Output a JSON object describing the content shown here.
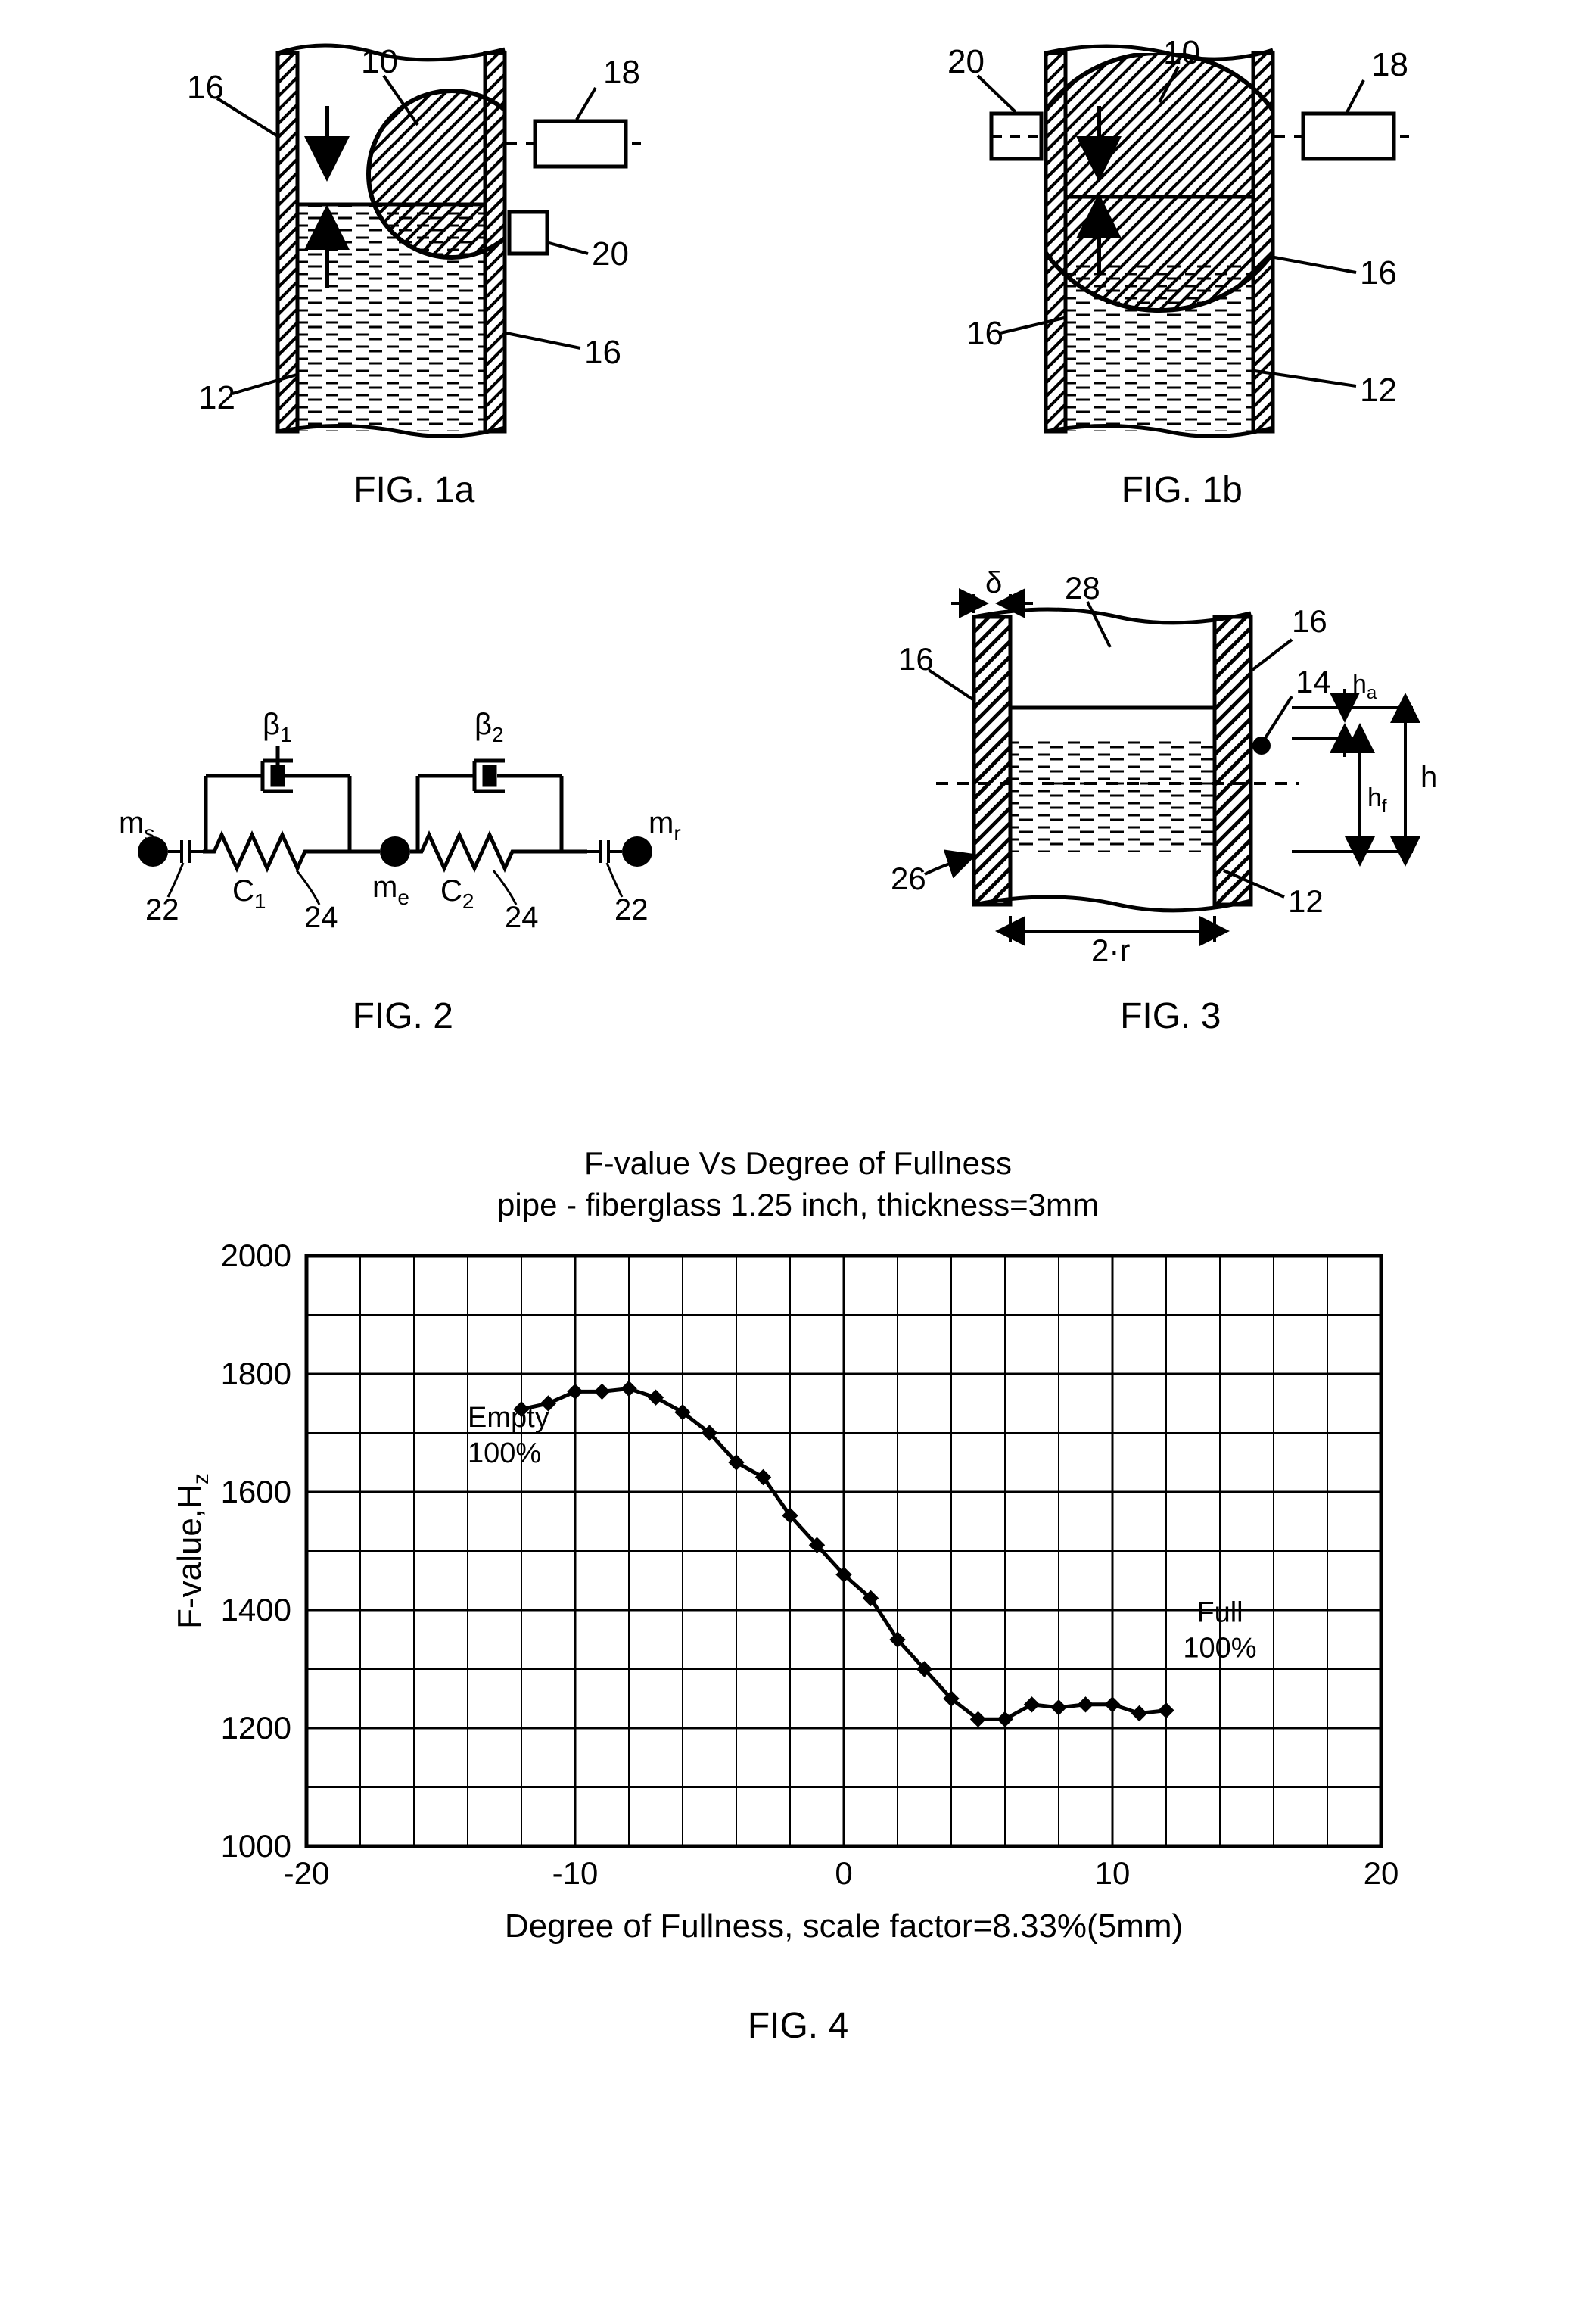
{
  "fig1a": {
    "caption": "FIG.  1a",
    "labels": {
      "l16a": "16",
      "l10": "10",
      "l18": "18",
      "l20": "20",
      "l16b": "16",
      "l12": "12"
    }
  },
  "fig1b": {
    "caption": "FIG.  1b",
    "labels": {
      "l20": "20",
      "l10": "10",
      "l18": "18",
      "l16a": "16",
      "l16b": "16",
      "l12": "12"
    }
  },
  "fig2": {
    "caption": "FIG.  2",
    "labels": {
      "ms": "m",
      "ms_sub": "s",
      "mr": "m",
      "mr_sub": "r",
      "me": "m",
      "me_sub": "e",
      "beta1": "β",
      "beta1_sub": "1",
      "beta2": "β",
      "beta2_sub": "2",
      "c1": "C",
      "c1_sub": "1",
      "c2": "C",
      "c2_sub": "2",
      "l22a": "22",
      "l22b": "22",
      "l24a": "24",
      "l24b": "24"
    }
  },
  "fig3": {
    "caption": "FIG.  3",
    "labels": {
      "delta": "δ",
      "l28": "28",
      "l16a": "16",
      "l16b": "16",
      "l14": "14",
      "ha": "h",
      "ha_sub": "a",
      "h": "h",
      "hf": "h",
      "hf_sub": "f",
      "l26": "26",
      "l12": "12",
      "r2": "2·r"
    }
  },
  "fig4": {
    "caption": "FIG.  4",
    "title_line1": "F-value Vs Degree of Fullness",
    "title_line2": "pipe - fiberglass 1.25 inch, thickness=3mm",
    "ylabel": "F-value,H",
    "ylabel_sub": "z",
    "xlabel": "Degree of Fullness, scale factor=8.33%(5mm)",
    "empty_label": "Empty",
    "empty_pct": "100%",
    "full_label": "Full",
    "full_pct": "100%",
    "x_ticks": [
      "-20",
      "-10",
      "0",
      "10",
      "20"
    ],
    "y_ticks": [
      "1000",
      "1200",
      "1400",
      "1600",
      "1800",
      "2000"
    ],
    "xlim": [
      -20,
      20
    ],
    "ylim": [
      1000,
      2000
    ],
    "grid_step_x": 2,
    "grid_step_y": 100,
    "line_color": "#000000",
    "marker_color": "#000000",
    "background": "#ffffff",
    "data": [
      {
        "x": -12,
        "y": 1740
      },
      {
        "x": -11,
        "y": 1750
      },
      {
        "x": -10,
        "y": 1770
      },
      {
        "x": -9,
        "y": 1770
      },
      {
        "x": -8,
        "y": 1775
      },
      {
        "x": -7,
        "y": 1760
      },
      {
        "x": -6,
        "y": 1735
      },
      {
        "x": -5,
        "y": 1700
      },
      {
        "x": -4,
        "y": 1650
      },
      {
        "x": -3,
        "y": 1625
      },
      {
        "x": -2,
        "y": 1560
      },
      {
        "x": -1,
        "y": 1510
      },
      {
        "x": 0,
        "y": 1460
      },
      {
        "x": 1,
        "y": 1420
      },
      {
        "x": 2,
        "y": 1350
      },
      {
        "x": 3,
        "y": 1300
      },
      {
        "x": 4,
        "y": 1250
      },
      {
        "x": 5,
        "y": 1215
      },
      {
        "x": 6,
        "y": 1215
      },
      {
        "x": 7,
        "y": 1240
      },
      {
        "x": 8,
        "y": 1235
      },
      {
        "x": 9,
        "y": 1240
      },
      {
        "x": 10,
        "y": 1240
      },
      {
        "x": 11,
        "y": 1225
      },
      {
        "x": 12,
        "y": 1230
      }
    ]
  }
}
